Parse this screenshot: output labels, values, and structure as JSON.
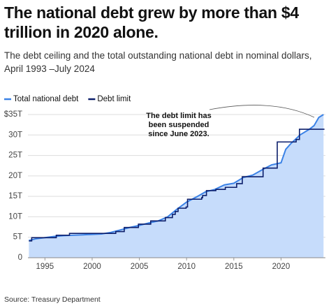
{
  "chart_data": {
    "type": "line",
    "title": "The national debt grew by more than $4 trillion in 2020 alone.",
    "subtitle": "The debt ceiling and the total outstanding national debt in nominal dollars, April 1993 –July 2024",
    "source": "Source: Treasury Department",
    "annotation": [
      "The debt limit has",
      "been suspended",
      "since June 2023."
    ],
    "xlim": [
      1993.2,
      2024.7
    ],
    "xticks": [
      1995,
      2000,
      2005,
      2010,
      2015,
      2020
    ],
    "ylim": [
      0,
      35
    ],
    "yticks": [
      0,
      {
        "value": 5,
        "label": "5T"
      },
      {
        "value": 10,
        "label": "10T"
      },
      {
        "value": 15,
        "label": "15T"
      },
      {
        "value": 20,
        "label": "20T"
      },
      {
        "value": 25,
        "label": "25T"
      },
      {
        "value": 30,
        "label": "30T"
      },
      {
        "value": 35,
        "label": "$35T"
      }
    ],
    "grid": true,
    "legend": "top-left",
    "series": [
      {
        "name": "Total national debt",
        "color": "#3b82e6",
        "fill": "#c6dcfb",
        "area": true,
        "x": [
          1993.3,
          1994,
          1995,
          1996,
          1997,
          1998,
          1999,
          2000,
          2001,
          2002,
          2003,
          2004,
          2005,
          2006,
          2007,
          2008,
          2009,
          2010,
          2011,
          2012,
          2013,
          2014,
          2015,
          2016,
          2017,
          2018,
          2019,
          2020,
          2020.5,
          2021,
          2022,
          2023,
          2023.5,
          2024,
          2024.5
        ],
        "values": [
          4.2,
          4.6,
          4.9,
          5.2,
          5.4,
          5.5,
          5.6,
          5.7,
          5.8,
          6.2,
          6.8,
          7.4,
          7.9,
          8.5,
          9.0,
          10.0,
          11.9,
          13.6,
          14.8,
          16.1,
          16.7,
          17.8,
          18.2,
          19.6,
          20.2,
          21.5,
          22.7,
          23.2,
          26.5,
          27.8,
          30.0,
          31.4,
          32.3,
          34.3,
          35.0
        ]
      },
      {
        "name": "Debt limit",
        "color": "#0c1e6b",
        "step": true,
        "x": [
          1993.3,
          1993.6,
          1996.2,
          1997.6,
          2002.5,
          2003.4,
          2004.9,
          2006.2,
          2007.75,
          2008.5,
          2008.8,
          2009.1,
          2009.95,
          2010.1,
          2011.6,
          2011.7,
          2012.1,
          2013.1,
          2014.1,
          2015.3,
          2015.9,
          2017.2,
          2018.1,
          2019.6,
          2021.6,
          2021.95,
          2024.6
        ],
        "values": [
          4.1,
          4.9,
          5.5,
          5.95,
          6.4,
          7.4,
          8.2,
          9.0,
          9.8,
          10.6,
          11.3,
          12.1,
          12.4,
          14.3,
          14.7,
          15.2,
          16.4,
          16.7,
          17.2,
          18.1,
          19.8,
          19.8,
          21.9,
          28.3,
          28.9,
          31.4,
          31.4
        ]
      }
    ]
  }
}
